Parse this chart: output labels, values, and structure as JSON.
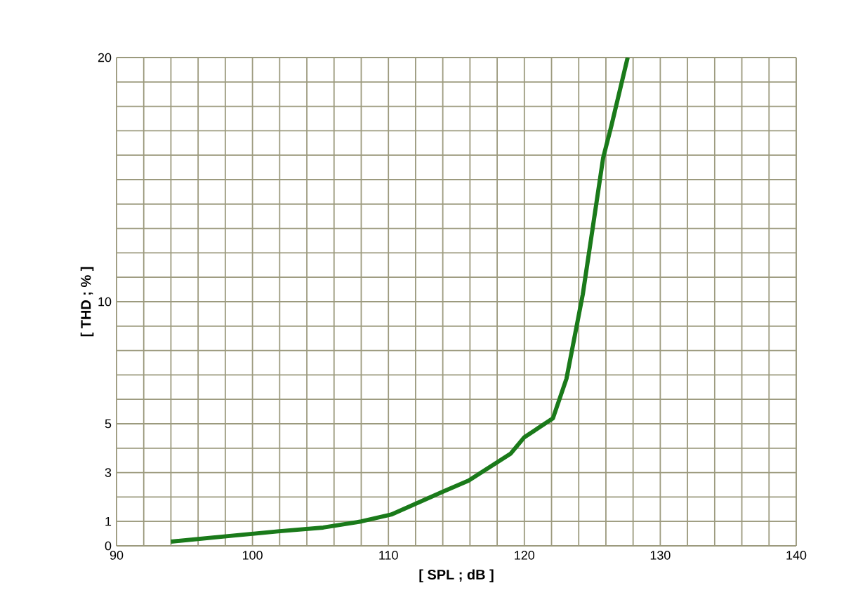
{
  "chart_data": {
    "type": "line",
    "xlabel": "[ SPL ; dB ]",
    "ylabel": "[ THD ; % ]",
    "x": [
      94.0,
      98.6,
      102.0,
      105.2,
      108.0,
      110.2,
      114.1,
      115.9,
      119.0,
      120.0,
      122.1,
      123.1,
      124.3,
      125.8,
      126.4,
      127.6
    ],
    "series": [
      {
        "color": "#1a7a1a",
        "values": [
          0.17,
          0.42,
          0.6,
          0.75,
          1.0,
          1.28,
          2.24,
          2.67,
          3.78,
          4.45,
          5.22,
          6.85,
          10.3,
          15.9,
          17.2,
          20.0
        ]
      }
    ],
    "xlim": [
      90,
      140
    ],
    "ylim": [
      0,
      20
    ],
    "xticks": [
      90,
      {
        "value": 92,
        "label": null
      },
      {
        "value": 94,
        "label": null
      },
      {
        "value": 96,
        "label": null
      },
      {
        "value": 98,
        "label": null
      },
      100,
      {
        "value": 102,
        "label": null
      },
      {
        "value": 104,
        "label": null
      },
      {
        "value": 106,
        "label": null
      },
      {
        "value": 108,
        "label": null
      },
      110,
      {
        "value": 112,
        "label": null
      },
      {
        "value": 114,
        "label": null
      },
      {
        "value": 116,
        "label": null
      },
      {
        "value": 118,
        "label": null
      },
      120,
      {
        "value": 122,
        "label": null
      },
      {
        "value": 124,
        "label": null
      },
      {
        "value": 126,
        "label": null
      },
      {
        "value": 128,
        "label": null
      },
      130,
      {
        "value": 132,
        "label": null
      },
      {
        "value": 134,
        "label": null
      },
      {
        "value": 136,
        "label": null
      },
      {
        "value": 138,
        "label": null
      },
      140
    ],
    "yticks": [
      0,
      1,
      {
        "value": 2,
        "label": null
      },
      3,
      {
        "value": 4,
        "label": null
      },
      5,
      {
        "value": 6,
        "label": null
      },
      {
        "value": 7,
        "label": null
      },
      {
        "value": 8,
        "label": null
      },
      {
        "value": 9,
        "label": null
      },
      10,
      {
        "value": 11,
        "label": null
      },
      {
        "value": 12,
        "label": null
      },
      {
        "value": 13,
        "label": null
      },
      {
        "value": 14,
        "label": null
      },
      {
        "value": 15,
        "label": null
      },
      {
        "value": 16,
        "label": null
      },
      {
        "value": 17,
        "label": null
      },
      {
        "value": 18,
        "label": null
      },
      {
        "value": 19,
        "label": null
      },
      20
    ],
    "grid": true,
    "marker": "none",
    "line_style": "solid"
  }
}
